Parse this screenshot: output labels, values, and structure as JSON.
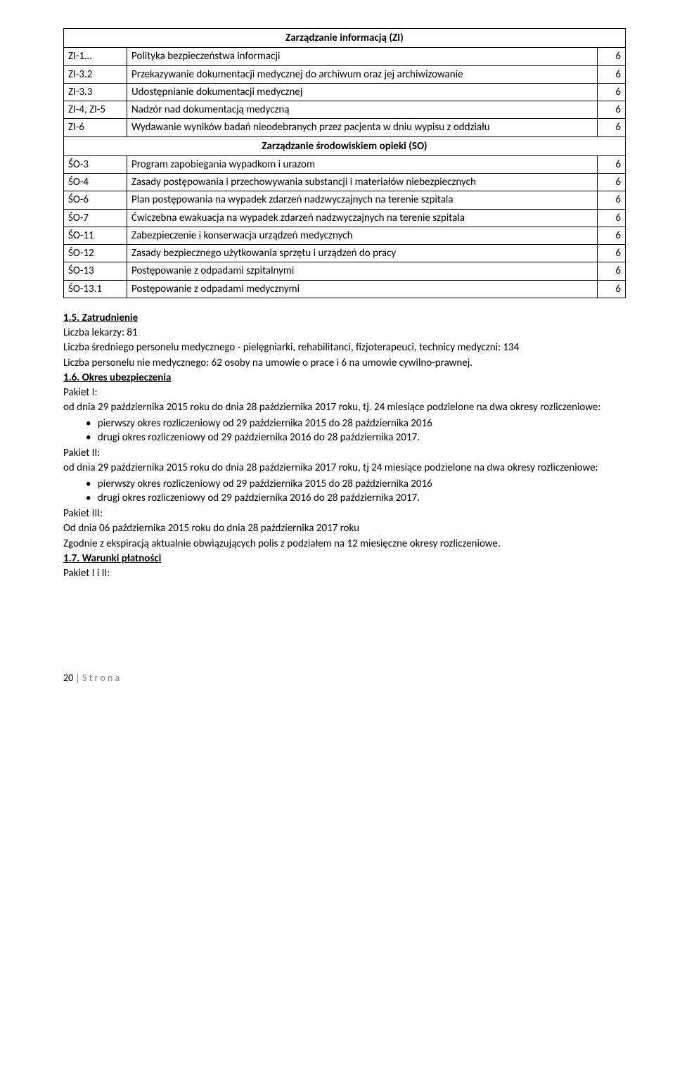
{
  "table_zi": {
    "header": "Zarządzanie informacją (ZI)",
    "rows": [
      {
        "code": "ZI-1…",
        "desc": "Polityka bezpieczeństwa informacji",
        "val": "6"
      },
      {
        "code": "ZI-3.2",
        "desc": "Przekazywanie dokumentacji medycznej do archiwum oraz jej archiwizowanie",
        "val": "6"
      },
      {
        "code": "ZI-3.3",
        "desc": "Udostępnianie dokumentacji medycznej",
        "val": "6"
      },
      {
        "code": "ZI-4, ZI-5",
        "desc": "Nadzór nad dokumentacją medyczną",
        "val": "6"
      },
      {
        "code": "ZI-6",
        "desc": "Wydawanie wyników badań nieodebranych przez pacjenta w dniu wypisu z oddziału",
        "val": "6"
      }
    ]
  },
  "table_so": {
    "header": "Zarządzanie środowiskiem opieki (SO)",
    "rows": [
      {
        "code": "ŚO-3",
        "desc": "Program zapobiegania wypadkom i urazom",
        "val": "6"
      },
      {
        "code": "ŚO-4",
        "desc": "Zasady postępowania i przechowywania substancji i materiałów niebezpiecznych",
        "val": "6"
      },
      {
        "code": "ŚO-6",
        "desc": "Plan postępowania na wypadek zdarzeń nadzwyczajnych na terenie szpitala",
        "val": "6"
      },
      {
        "code": "ŚO-7",
        "desc": "Ćwiczebna ewakuacja na wypadek zdarzeń nadzwyczajnych na terenie szpitala",
        "val": "6"
      },
      {
        "code": "ŚO-11",
        "desc": "Zabezpieczenie i konserwacja urządzeń medycznych",
        "val": "6"
      },
      {
        "code": "ŚO-12",
        "desc": "Zasady bezpiecznego użytkowania sprzętu i urządzeń do pracy",
        "val": "6"
      },
      {
        "code": "ŚO-13",
        "desc": "Postępowanie z odpadami szpitalnymi",
        "val": "6"
      },
      {
        "code": "ŚO-13.1",
        "desc": "Postępowanie z odpadami medycznymi",
        "val": "6"
      }
    ]
  },
  "sections": {
    "s15": {
      "heading": "1.5. Zatrudnienie",
      "lines": [
        "Liczba lekarzy: 81",
        "Liczba średniego personelu medycznego - pielęgniarki, rehabilitanci, fizjoterapeuci, technicy medyczni: 134",
        "Liczba personelu nie medycznego: 62 osoby na umowie o prace i  6 na umowie cywilno-prawnej."
      ]
    },
    "s16": {
      "heading": "1.6. Okres ubezpieczenia",
      "pakiet1": {
        "label": "Pakiet I:",
        "intro": "od dnia 29 października 2015 roku do dnia 28 października 2017 roku, tj. 24 miesiące podzielone na dwa okresy rozliczeniowe:",
        "bullets": [
          "pierwszy okres rozliczeniowy od 29 października 2015 do 28 października 2016",
          "drugi okres rozliczeniowy od 29 października 2016 do 28 października 2017."
        ]
      },
      "pakiet2": {
        "label": "Pakiet II:",
        "intro": "od dnia 29 października 2015 roku do dnia 28 października 2017 roku, tj 24 miesiące podzielone na dwa okresy rozliczeniowe:",
        "bullets": [
          "pierwszy okres rozliczeniowy od 29 października 2015 do 28 października 2016",
          "drugi okres rozliczeniowy od 29 października 2016 do 28 października 2017."
        ]
      },
      "pakiet3": {
        "label": "Pakiet III:",
        "line1": "Od dnia 06 października 2015 roku do dnia 28 października 2017 roku",
        "line2": "Zgodnie z ekspiracją aktualnie obwiązujących polis z podziałem na 12 miesięczne okresy rozliczeniowe."
      }
    },
    "s17": {
      "heading": "1.7. Warunki płatności",
      "line": "Pakiet I i II:"
    }
  },
  "footer": {
    "page": "20",
    "sep": " | ",
    "text": "S t r o n a"
  }
}
